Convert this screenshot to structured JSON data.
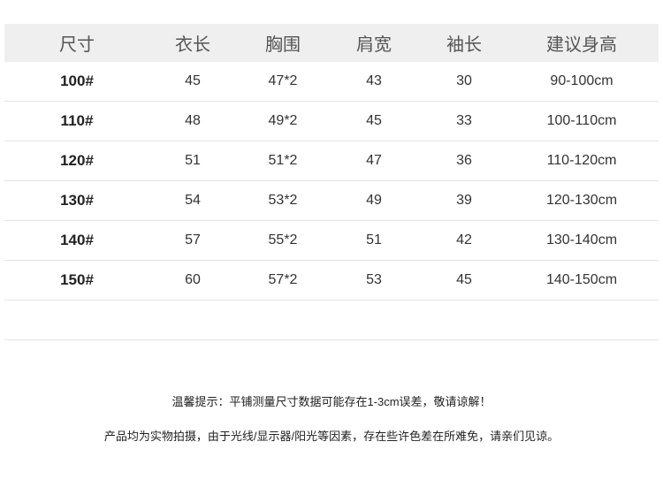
{
  "headers": [
    "尺寸",
    "衣长",
    "胸围",
    "肩宽",
    "袖长",
    "建议身高"
  ],
  "rows": [
    [
      "100#",
      "45",
      "47*2",
      "43",
      "30",
      "90-100cm"
    ],
    [
      "110#",
      "48",
      "49*2",
      "45",
      "33",
      "100-110cm"
    ],
    [
      "120#",
      "51",
      "51*2",
      "47",
      "36",
      "110-120cm"
    ],
    [
      "130#",
      "54",
      "53*2",
      "49",
      "39",
      "120-130cm"
    ],
    [
      "140#",
      "57",
      "55*2",
      "51",
      "42",
      "130-140cm"
    ],
    [
      "150#",
      "60",
      "57*2",
      "53",
      "45",
      "140-150cm"
    ]
  ],
  "notes": {
    "tip": "温馨提示：平铺测量尺寸数据可能存在1-3cm误差，敬请谅解！",
    "disclaimer": "产品均为实物拍摄，由于光线/显示器/阳光等因素，存在些许色差在所难免，请亲们见谅。"
  }
}
